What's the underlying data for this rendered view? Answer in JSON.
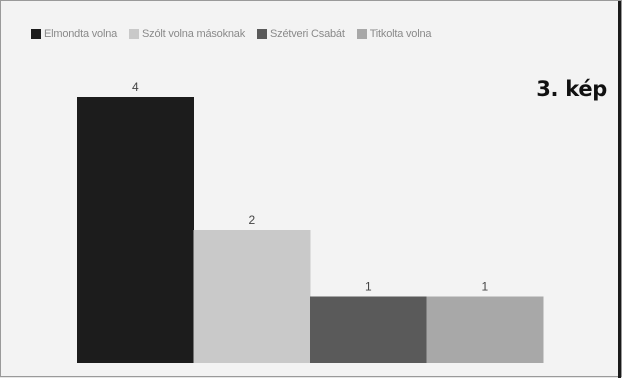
{
  "caption": "3. kép",
  "chart_data": {
    "type": "bar",
    "categories": [
      "Elmondta volna",
      "Szólt volna másoknak",
      "Szétveri Csabát",
      "Titkolta volna"
    ],
    "values": [
      4,
      2,
      1,
      1
    ],
    "data_labels": [
      "4",
      "2",
      "1",
      "1"
    ],
    "colors": [
      "#1c1c1c",
      "#c9c9c9",
      "#5a5a5a",
      "#a8a8a8"
    ],
    "title": "",
    "xlabel": "",
    "ylabel": "",
    "ylim": [
      0,
      4
    ],
    "grid": false,
    "legend_position": "top",
    "legend": [
      {
        "label": "Elmondta volna",
        "color": "#1c1c1c"
      },
      {
        "label": "Szólt volna másoknak",
        "color": "#c9c9c9"
      },
      {
        "label": "Szétveri Csabát",
        "color": "#5a5a5a"
      },
      {
        "label": "Titkolta volna",
        "color": "#a8a8a8"
      }
    ]
  }
}
